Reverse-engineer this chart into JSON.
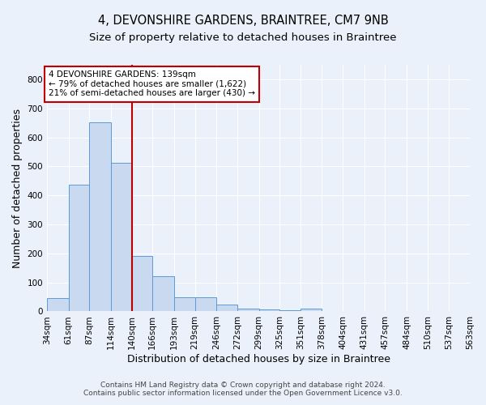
{
  "title": "4, DEVONSHIRE GARDENS, BRAINTREE, CM7 9NB",
  "subtitle": "Size of property relative to detached houses in Braintree",
  "xlabel": "Distribution of detached houses by size in Braintree",
  "ylabel": "Number of detached properties",
  "footnote1": "Contains HM Land Registry data © Crown copyright and database right 2024.",
  "footnote2": "Contains public sector information licensed under the Open Government Licence v3.0.",
  "bar_edges": [
    34,
    61,
    87,
    114,
    140,
    166,
    193,
    219,
    246,
    272,
    299,
    325,
    351,
    378,
    404,
    431,
    457,
    484,
    510,
    537,
    563
  ],
  "bar_heights": [
    47,
    437,
    651,
    512,
    192,
    122,
    49,
    49,
    25,
    10,
    8,
    5,
    10,
    0,
    0,
    0,
    0,
    0,
    0,
    0
  ],
  "bar_color": "#c9daf0",
  "bar_edge_color": "#5b9bd5",
  "vline_x": 140,
  "vline_color": "#c00000",
  "annotation_line1": "4 DEVONSHIRE GARDENS: 139sqm",
  "annotation_line2": "← 79% of detached houses are smaller (1,622)",
  "annotation_line3": "21% of semi-detached houses are larger (430) →",
  "annotation_box_color": "white",
  "annotation_box_edge": "#c00000",
  "ylim": [
    0,
    850
  ],
  "yticks": [
    0,
    100,
    200,
    300,
    400,
    500,
    600,
    700,
    800
  ],
  "tick_labels": [
    "34sqm",
    "61sqm",
    "87sqm",
    "114sqm",
    "140sqm",
    "166sqm",
    "193sqm",
    "219sqm",
    "246sqm",
    "272sqm",
    "299sqm",
    "325sqm",
    "351sqm",
    "378sqm",
    "404sqm",
    "431sqm",
    "457sqm",
    "484sqm",
    "510sqm",
    "537sqm",
    "563sqm"
  ],
  "bg_color": "#eaf1fb",
  "grid_color": "#ffffff",
  "title_fontsize": 10.5,
  "subtitle_fontsize": 9.5,
  "axis_label_fontsize": 9,
  "tick_fontsize": 7.5,
  "annotation_fontsize": 7.5,
  "footnote_fontsize": 6.5
}
